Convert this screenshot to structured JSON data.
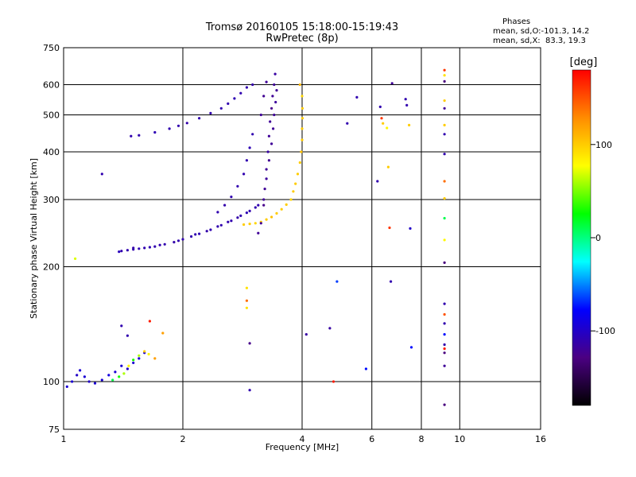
{
  "header": {
    "title_line1": "Tromsø 20160105 15:18:00-15:19:43",
    "title_line2": "RwPretec (8p)"
  },
  "phases": {
    "heading": "Phases",
    "line_o": "mean, sd,O:-101.3, 14.2",
    "line_x": "mean, sd,X:  83.3, 19.3"
  },
  "colorbar": {
    "label": "[deg]",
    "ticks": [
      "100",
      "0",
      "-100"
    ],
    "tick_values": [
      100,
      0,
      -100
    ],
    "range": [
      -180,
      180
    ],
    "stops": [
      "#000000",
      "#4b0082",
      "#0000ff",
      "#00ffff",
      "#00ff00",
      "#ffff00",
      "#ff8c00",
      "#ff0000"
    ]
  },
  "chart_data": {
    "type": "scatter",
    "title": "Tromsø 20160105 15:18:00-15:19:43",
    "subtitle": "RwPretec (8p)",
    "xlabel": "Frequency [MHz]",
    "ylabel": "Stationary phase Virtual Height [km]",
    "xscale": "log",
    "yscale": "log",
    "xlim": [
      1,
      16
    ],
    "ylim": [
      75,
      750
    ],
    "xticks": [
      1,
      2,
      4,
      6,
      8,
      10,
      16
    ],
    "xtick_labels": [
      "1",
      "2",
      "4",
      "6",
      "8",
      "10",
      "16"
    ],
    "yticks": [
      75,
      100,
      200,
      300,
      400,
      500,
      600,
      750
    ],
    "ytick_labels": [
      "75",
      "100",
      "200",
      "300",
      "400",
      "500",
      "600",
      "750"
    ],
    "grid": true,
    "color_scale": "phase [deg]",
    "trace_ranges": [
      {
        "x": [
          1.4,
          3.25
        ],
        "y": [
          220,
          290
        ],
        "phase": -110
      },
      {
        "x": [
          2.8,
          4.0
        ],
        "y": [
          255,
          600
        ],
        "phase": 100
      },
      {
        "x": [
          3.1,
          3.45
        ],
        "y": [
          240,
          640
        ],
        "phase": -120
      },
      {
        "x": [
          1.02,
          1.6
        ],
        "y": [
          95,
          120
        ],
        "phase": -95
      }
    ],
    "points": [
      [
        1.4,
        220,
        -110
      ],
      [
        1.45,
        221,
        -110
      ],
      [
        1.5,
        222,
        -110
      ],
      [
        1.55,
        223,
        -108
      ],
      [
        1.6,
        224,
        -110
      ],
      [
        1.7,
        226,
        -110
      ],
      [
        1.8,
        229,
        -110
      ],
      [
        1.9,
        232,
        -112
      ],
      [
        2.0,
        236,
        -110
      ],
      [
        2.1,
        240,
        -110
      ],
      [
        2.2,
        244,
        -108
      ],
      [
        2.35,
        250,
        -110
      ],
      [
        2.5,
        257,
        -110
      ],
      [
        2.65,
        264,
        -110
      ],
      [
        2.8,
        272,
        -110
      ],
      [
        2.95,
        280,
        -110
      ],
      [
        3.1,
        290,
        -110
      ],
      [
        1.38,
        219,
        -105
      ],
      [
        1.5,
        224,
        -112
      ],
      [
        1.65,
        225,
        -108
      ],
      [
        1.75,
        228,
        -110
      ],
      [
        1.95,
        234,
        -110
      ],
      [
        2.15,
        243,
        -110
      ],
      [
        2.3,
        248,
        -112
      ],
      [
        2.45,
        255,
        -110
      ],
      [
        2.6,
        262,
        -110
      ],
      [
        2.75,
        269,
        -112
      ],
      [
        2.9,
        277,
        -108
      ],
      [
        3.05,
        286,
        -110
      ],
      [
        2.45,
        278,
        -110
      ],
      [
        2.55,
        290,
        -112
      ],
      [
        2.65,
        305,
        -110
      ],
      [
        2.75,
        325,
        -110
      ],
      [
        2.85,
        350,
        -110
      ],
      [
        2.9,
        380,
        -110
      ],
      [
        2.95,
        410,
        -108
      ],
      [
        3.0,
        445,
        -110
      ],
      [
        1.48,
        440,
        -110
      ],
      [
        1.55,
        442,
        -110
      ],
      [
        1.7,
        450,
        -108
      ],
      [
        1.85,
        460,
        -110
      ],
      [
        1.95,
        468,
        -110
      ],
      [
        2.05,
        476,
        -112
      ],
      [
        2.2,
        490,
        -110
      ],
      [
        2.35,
        505,
        -110
      ],
      [
        2.5,
        520,
        -110
      ],
      [
        2.6,
        535,
        -110
      ],
      [
        2.7,
        552,
        -108
      ],
      [
        2.8,
        570,
        -110
      ],
      [
        2.9,
        590,
        -110
      ],
      [
        3.0,
        600,
        -112
      ],
      [
        2.85,
        258,
        100
      ],
      [
        2.95,
        259,
        100
      ],
      [
        3.05,
        260,
        95
      ],
      [
        3.15,
        262,
        100
      ],
      [
        3.25,
        266,
        100
      ],
      [
        3.35,
        270,
        105
      ],
      [
        3.45,
        276,
        100
      ],
      [
        3.55,
        283,
        100
      ],
      [
        3.65,
        291,
        100
      ],
      [
        3.75,
        300,
        95
      ],
      [
        3.8,
        315,
        100
      ],
      [
        3.85,
        330,
        100
      ],
      [
        3.9,
        350,
        100
      ],
      [
        3.95,
        375,
        100
      ],
      [
        3.98,
        400,
        105
      ],
      [
        4.0,
        430,
        100
      ],
      [
        4.0,
        460,
        100
      ],
      [
        4.01,
        490,
        100
      ],
      [
        4.01,
        520,
        100
      ],
      [
        4.0,
        560,
        95
      ],
      [
        3.95,
        600,
        110
      ],
      [
        3.1,
        245,
        -120
      ],
      [
        3.15,
        260,
        -120
      ],
      [
        3.2,
        290,
        -125
      ],
      [
        3.22,
        320,
        -120
      ],
      [
        3.25,
        360,
        -120
      ],
      [
        3.28,
        400,
        -115
      ],
      [
        3.3,
        440,
        -120
      ],
      [
        3.32,
        480,
        -120
      ],
      [
        3.35,
        520,
        -125
      ],
      [
        3.37,
        560,
        -120
      ],
      [
        3.4,
        600,
        -120
      ],
      [
        3.42,
        640,
        -115
      ],
      [
        3.2,
        300,
        -120
      ],
      [
        3.25,
        340,
        -118
      ],
      [
        3.3,
        380,
        -122
      ],
      [
        3.35,
        420,
        -120
      ],
      [
        3.38,
        460,
        -120
      ],
      [
        3.4,
        500,
        -120
      ],
      [
        3.43,
        540,
        -118
      ],
      [
        3.45,
        580,
        -120
      ],
      [
        3.15,
        500,
        -120
      ],
      [
        3.2,
        560,
        -122
      ],
      [
        3.25,
        610,
        -120
      ],
      [
        1.02,
        97,
        -95
      ],
      [
        1.05,
        100,
        -95
      ],
      [
        1.08,
        104,
        -100
      ],
      [
        1.1,
        107,
        -95
      ],
      [
        1.13,
        103,
        -95
      ],
      [
        1.16,
        100,
        -100
      ],
      [
        1.2,
        99,
        -95
      ],
      [
        1.25,
        101,
        -95
      ],
      [
        1.3,
        104,
        -90
      ],
      [
        1.35,
        106,
        -95
      ],
      [
        1.4,
        110,
        -95
      ],
      [
        1.45,
        108,
        -100
      ],
      [
        1.5,
        112,
        -95
      ],
      [
        1.55,
        115,
        -95
      ],
      [
        1.6,
        119,
        -95
      ],
      [
        1.33,
        101,
        10
      ],
      [
        1.38,
        103,
        30
      ],
      [
        1.42,
        105,
        60
      ],
      [
        1.46,
        110,
        80
      ],
      [
        1.5,
        114,
        30
      ],
      [
        1.55,
        117,
        60
      ],
      [
        1.6,
        120,
        100
      ],
      [
        1.64,
        118,
        80
      ],
      [
        1.7,
        115,
        120
      ],
      [
        1.07,
        210,
        70
      ],
      [
        1.25,
        350,
        -110
      ],
      [
        1.4,
        140,
        -110
      ],
      [
        1.45,
        132,
        -110
      ],
      [
        1.65,
        144,
        170
      ],
      [
        1.78,
        134,
        120
      ],
      [
        2.95,
        95,
        -110
      ],
      [
        2.9,
        176,
        90
      ],
      [
        2.9,
        163,
        140
      ],
      [
        2.9,
        156,
        90
      ],
      [
        2.95,
        126,
        -125
      ],
      [
        4.1,
        133,
        -115
      ],
      [
        4.7,
        138,
        -115
      ],
      [
        4.8,
        100,
        170
      ],
      [
        4.9,
        183,
        -65
      ],
      [
        5.2,
        475,
        -110
      ],
      [
        5.5,
        556,
        -110
      ],
      [
        5.8,
        108,
        -75
      ],
      [
        6.2,
        335,
        -110
      ],
      [
        6.3,
        525,
        -110
      ],
      [
        6.35,
        490,
        160
      ],
      [
        6.4,
        475,
        100
      ],
      [
        6.55,
        462,
        80
      ],
      [
        6.6,
        365,
        100
      ],
      [
        6.65,
        253,
        160
      ],
      [
        6.7,
        183,
        -110
      ],
      [
        6.75,
        605,
        -120
      ],
      [
        7.3,
        550,
        -110
      ],
      [
        7.35,
        530,
        -110
      ],
      [
        7.45,
        470,
        100
      ],
      [
        7.5,
        252,
        -100
      ],
      [
        7.55,
        123,
        -75
      ],
      [
        9.15,
        655,
        160
      ],
      [
        9.15,
        635,
        90
      ],
      [
        9.15,
        612,
        -130
      ],
      [
        9.15,
        545,
        100
      ],
      [
        9.15,
        520,
        -120
      ],
      [
        9.15,
        470,
        100
      ],
      [
        9.15,
        445,
        -110
      ],
      [
        9.15,
        395,
        -110
      ],
      [
        9.15,
        335,
        140
      ],
      [
        9.15,
        302,
        100
      ],
      [
        9.15,
        268,
        10
      ],
      [
        9.15,
        235,
        80
      ],
      [
        9.15,
        205,
        -130
      ],
      [
        9.15,
        160,
        -110
      ],
      [
        9.15,
        150,
        150
      ],
      [
        9.15,
        142,
        -110
      ],
      [
        9.15,
        133,
        -75
      ],
      [
        9.15,
        125,
        -110
      ],
      [
        9.15,
        122,
        170
      ],
      [
        9.15,
        119,
        -130
      ],
      [
        9.15,
        110,
        -120
      ],
      [
        9.15,
        87,
        -130
      ]
    ]
  }
}
